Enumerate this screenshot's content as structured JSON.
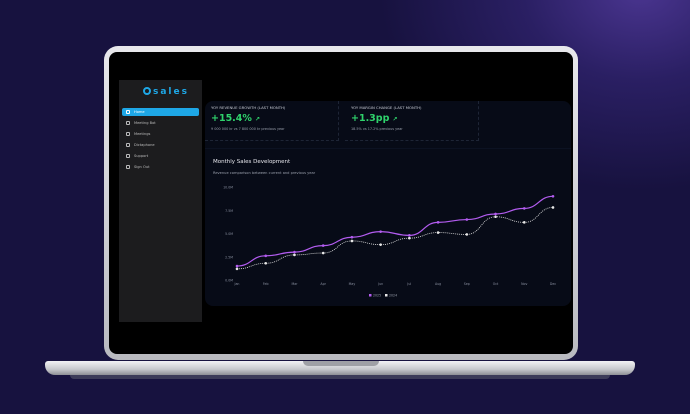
{
  "app": {
    "logo": "sales"
  },
  "sidebar": {
    "items": [
      {
        "label": "Home",
        "icon": "home-icon",
        "active": true
      },
      {
        "label": "Meeting Bot",
        "icon": "bot-icon"
      },
      {
        "label": "Meetings",
        "icon": "people-icon"
      },
      {
        "label": "Dictaphone",
        "icon": "microphone-icon"
      },
      {
        "label": "Support",
        "icon": "help-icon"
      },
      {
        "label": "Sign Out",
        "icon": "sign-out-icon"
      }
    ]
  },
  "kpis": [
    {
      "title": "YOY REVENUE GROWTH (LAST MONTH)",
      "value": "+15.4%",
      "sub": "9 000 000 kr vs 7 800 000 kr previous year",
      "icon": "trend-up-icon"
    },
    {
      "title": "YOY MARGIN CHANGE (LAST MONTH)",
      "value": "+1.3pp",
      "sub": "18.5% vs 17.2% previous year",
      "icon": "trend-up-icon"
    }
  ],
  "chart": {
    "title": "Monthly Sales Development",
    "subtitle": "Revenue comparison between current and previous year"
  },
  "chart_data": {
    "type": "line",
    "categories": [
      "Jan",
      "Feb",
      "Mar",
      "Apr",
      "May",
      "Jun",
      "Jul",
      "Aug",
      "Sep",
      "Oct",
      "Nov",
      "Dec"
    ],
    "ylim": [
      0,
      10
    ],
    "yticks": [
      "0.0M",
      "2.5M",
      "5.0M",
      "7.5M",
      "10.0M"
    ],
    "legend": "bottom",
    "series": [
      {
        "name": "2025",
        "color": "#b35cf0",
        "style": "solid",
        "values": [
          1.5,
          2.6,
          3.0,
          3.7,
          4.6,
          5.2,
          4.8,
          6.2,
          6.5,
          7.1,
          7.7,
          9.0
        ]
      },
      {
        "name": "2024",
        "color": "#e8e8e8",
        "style": "dotted",
        "values": [
          1.2,
          1.8,
          2.7,
          2.9,
          4.2,
          3.8,
          4.5,
          5.1,
          4.9,
          6.8,
          6.2,
          7.8
        ]
      }
    ]
  }
}
